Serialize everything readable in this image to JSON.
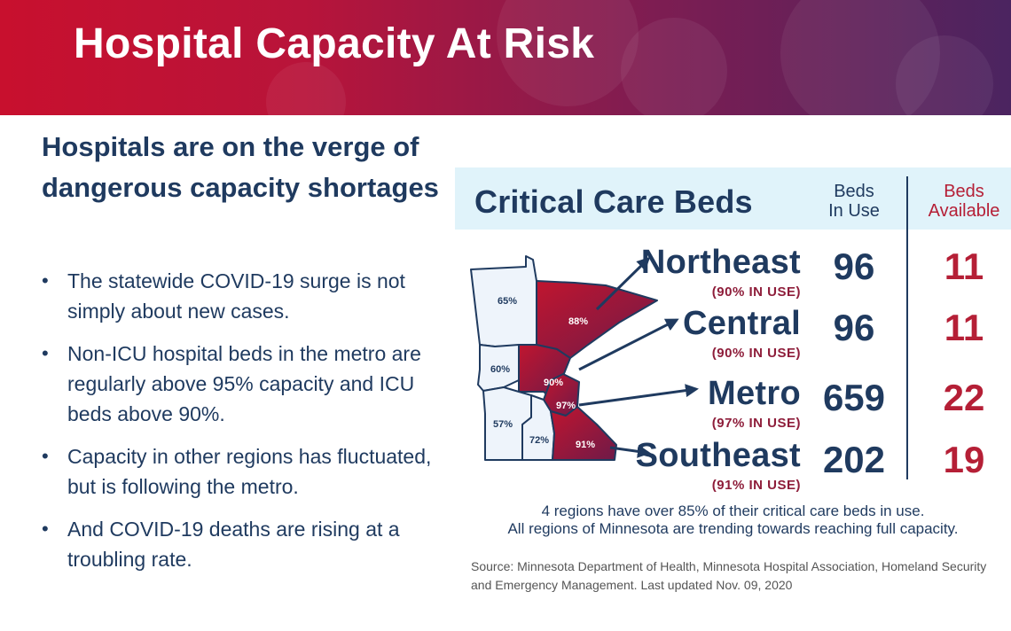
{
  "banner": {
    "title": "Hospital Capacity At Risk"
  },
  "headline": "Hospitals are on the verge of dangerous capacity shortages",
  "bullets": [
    "The statewide COVID-19 surge is not simply about new cases.",
    "Non-ICU hospital beds in the metro are regularly above 95% capacity and ICU beds above 90%.",
    "Capacity in other regions has fluctuated, but is following the metro.",
    "And COVID-19 deaths are rising at a troubling rate."
  ],
  "infographic": {
    "title": "Critical Care Beds",
    "col_in_use": [
      "Beds",
      "In Use"
    ],
    "col_available": [
      "Beds",
      "Available"
    ],
    "regions": [
      {
        "name": "Northeast",
        "pct_label": "(90% IN USE)",
        "in_use": "96",
        "available": "11"
      },
      {
        "name": "Central",
        "pct_label": "(90% IN USE)",
        "in_use": "96",
        "available": "11"
      },
      {
        "name": "Metro",
        "pct_label": "(97% IN USE)",
        "in_use": "659",
        "available": "22"
      },
      {
        "name": "Southeast",
        "pct_label": "(91% IN USE)",
        "in_use": "202",
        "available": "19"
      }
    ],
    "map_labels": [
      "65%",
      "88%",
      "60%",
      "90%",
      "97%",
      "57%",
      "72%",
      "91%"
    ],
    "summary": [
      "4 regions have over 85% of their critical care beds in use.",
      "All regions of Minnesota are trending towards reaching full capacity."
    ],
    "source": "Source: Minnesota Department of Health, Minnesota Hospital Association, Homeland Security and Emergency Management. Last updated Nov. 09, 2020"
  },
  "colors": {
    "banner_red": "#c8102e",
    "banner_purple": "#4b2460",
    "navy": "#1f3a5f",
    "crimson": "#b51f36",
    "light_region": "#eef4fb"
  }
}
